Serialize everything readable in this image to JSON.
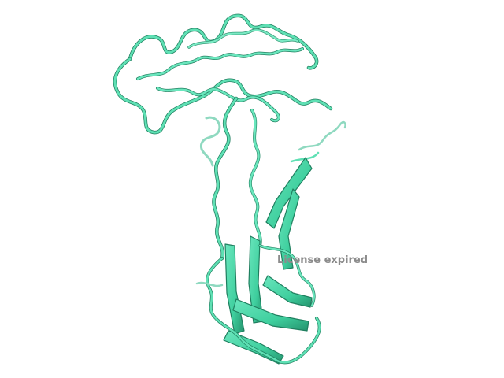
{
  "viewer": {
    "watermark_text": "License expired"
  },
  "colors": {
    "background": "#ffffff",
    "ribbon_light": "#5fe0b4",
    "ribbon_mid": "#3fcf9e",
    "ribbon_dark": "#1f7f5f",
    "watermark": "#8c8c8c"
  }
}
